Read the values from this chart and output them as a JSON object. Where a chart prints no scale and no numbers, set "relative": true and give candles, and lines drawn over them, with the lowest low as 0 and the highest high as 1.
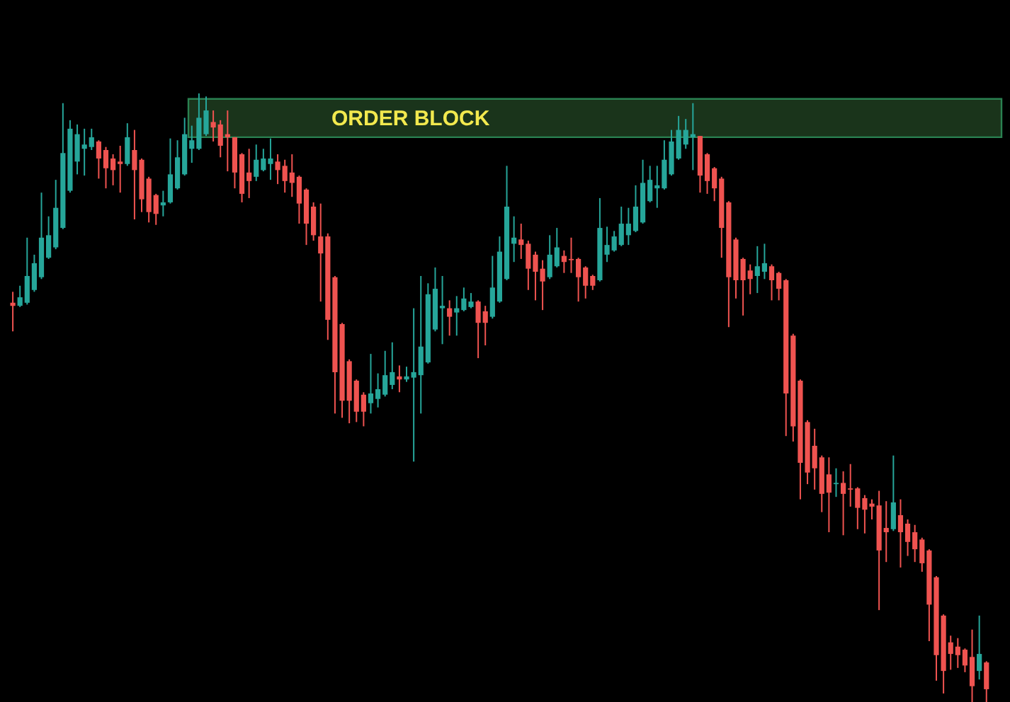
{
  "chart_data": {
    "type": "candlestick",
    "relative": true,
    "categories": [
      null,
      null,
      null,
      null,
      null,
      null,
      null,
      null,
      null,
      null,
      null,
      null,
      null,
      null,
      null,
      null,
      null,
      null,
      null,
      null,
      null,
      null,
      null,
      null,
      null,
      null,
      null,
      null,
      null,
      null,
      null,
      null,
      null,
      null,
      null,
      null,
      null,
      null,
      null,
      null,
      null,
      null,
      null,
      null,
      null,
      null,
      null,
      null,
      null,
      null,
      null,
      null,
      null,
      null,
      null,
      null,
      null,
      null,
      null,
      null,
      null,
      null,
      null,
      null,
      null,
      null,
      null,
      null,
      null,
      null,
      null,
      null,
      null,
      null,
      null,
      null,
      null,
      null,
      null,
      null,
      null,
      null,
      null,
      null,
      null,
      null,
      null,
      null,
      null,
      null,
      null,
      null,
      null,
      null,
      null,
      null,
      null,
      null,
      null,
      null,
      null,
      null,
      null,
      null,
      null,
      null,
      null,
      null,
      null,
      null,
      null,
      null,
      null,
      null,
      null,
      null,
      null,
      null,
      null,
      null,
      null,
      null,
      null,
      null,
      null,
      null,
      null,
      null,
      null,
      null,
      null,
      null,
      null,
      null,
      null,
      null,
      null
    ],
    "ohlc": [
      [
        0.656,
        0.674,
        0.609,
        0.651
      ],
      [
        0.651,
        0.684,
        0.649,
        0.665
      ],
      [
        0.656,
        0.763,
        0.653,
        0.7
      ],
      [
        0.677,
        0.735,
        0.674,
        0.721
      ],
      [
        0.698,
        0.837,
        0.695,
        0.763
      ],
      [
        0.73,
        0.798,
        0.728,
        0.767
      ],
      [
        0.747,
        0.858,
        0.744,
        0.812
      ],
      [
        0.779,
        0.984,
        0.777,
        0.902
      ],
      [
        0.84,
        0.956,
        0.837,
        0.942
      ],
      [
        0.888,
        0.949,
        0.867,
        0.933
      ],
      [
        0.909,
        0.942,
        0.865,
        0.916
      ],
      [
        0.912,
        0.942,
        0.907,
        0.928
      ],
      [
        0.921,
        0.923,
        0.86,
        0.893
      ],
      [
        0.907,
        0.912,
        0.844,
        0.877
      ],
      [
        0.893,
        0.9,
        0.849,
        0.874
      ],
      [
        0.888,
        0.914,
        0.837,
        0.884
      ],
      [
        0.884,
        0.951,
        0.881,
        0.928
      ],
      [
        0.907,
        0.94,
        0.793,
        0.874
      ],
      [
        0.891,
        0.893,
        0.805,
        0.826
      ],
      [
        0.86,
        0.863,
        0.788,
        0.805
      ],
      [
        0.833,
        0.835,
        0.784,
        0.802
      ],
      [
        0.816,
        0.84,
        0.798,
        0.821
      ],
      [
        0.821,
        0.926,
        0.819,
        0.867
      ],
      [
        0.844,
        0.923,
        0.842,
        0.895
      ],
      [
        0.867,
        0.96,
        0.865,
        0.933
      ],
      [
        0.909,
        0.947,
        0.886,
        0.923
      ],
      [
        0.909,
        1,
        0.907,
        0.96
      ],
      [
        0.933,
        0.995,
        0.93,
        0.972
      ],
      [
        0.953,
        0.972,
        0.921,
        0.944
      ],
      [
        0.949,
        0.956,
        0.895,
        0.914
      ],
      [
        0.933,
        0.972,
        0.872,
        0.928
      ],
      [
        0.928,
        0.928,
        0.844,
        0.87
      ],
      [
        0.9,
        0.902,
        0.821,
        0.835
      ],
      [
        0.87,
        0.909,
        0.828,
        0.856
      ],
      [
        0.863,
        0.916,
        0.856,
        0.891
      ],
      [
        0.874,
        0.909,
        0.872,
        0.893
      ],
      [
        0.884,
        0.926,
        0.858,
        0.893
      ],
      [
        0.888,
        0.9,
        0.851,
        0.874
      ],
      [
        0.881,
        0.891,
        0.837,
        0.856
      ],
      [
        0.87,
        0.9,
        0.83,
        0.853
      ],
      [
        0.863,
        0.865,
        0.786,
        0.819
      ],
      [
        0.842,
        0.844,
        0.751,
        0.786
      ],
      [
        0.814,
        0.821,
        0.758,
        0.767
      ],
      [
        0.765,
        0.819,
        0.658,
        0.737
      ],
      [
        0.765,
        0.77,
        0.595,
        0.628
      ],
      [
        0.698,
        0.7,
        0.474,
        0.542
      ],
      [
        0.621,
        0.623,
        0.467,
        0.495
      ],
      [
        0.56,
        0.563,
        0.458,
        0.495
      ],
      [
        0.528,
        0.53,
        0.46,
        0.477
      ],
      [
        0.505,
        0.509,
        0.453,
        0.477
      ],
      [
        0.491,
        0.572,
        0.474,
        0.507
      ],
      [
        0.498,
        0.54,
        0.484,
        0.514
      ],
      [
        0.505,
        0.577,
        0.502,
        0.537
      ],
      [
        0.521,
        0.591,
        0.514,
        0.542
      ],
      [
        0.535,
        0.553,
        0.509,
        0.53
      ],
      [
        0.53,
        0.551,
        0.526,
        0.535
      ],
      [
        0.533,
        0.647,
        0.395,
        0.542
      ],
      [
        0.537,
        0.7,
        0.474,
        0.584
      ],
      [
        0.558,
        0.688,
        0.556,
        0.67
      ],
      [
        0.612,
        0.714,
        0.609,
        0.679
      ],
      [
        0.647,
        0.7,
        0.588,
        0.651
      ],
      [
        0.647,
        0.66,
        0.602,
        0.633
      ],
      [
        0.64,
        0.667,
        0.602,
        0.647
      ],
      [
        0.644,
        0.681,
        0.642,
        0.663
      ],
      [
        0.649,
        0.672,
        0.647,
        0.658
      ],
      [
        0.658,
        0.66,
        0.565,
        0.623
      ],
      [
        0.642,
        0.651,
        0.586,
        0.623
      ],
      [
        0.633,
        0.733,
        0.63,
        0.681
      ],
      [
        0.658,
        0.765,
        0.656,
        0.74
      ],
      [
        0.695,
        0.881,
        0.693,
        0.814
      ],
      [
        0.753,
        0.798,
        0.723,
        0.763
      ],
      [
        0.76,
        0.786,
        0.728,
        0.751
      ],
      [
        0.753,
        0.758,
        0.677,
        0.712
      ],
      [
        0.735,
        0.74,
        0.66,
        0.707
      ],
      [
        0.712,
        0.726,
        0.644,
        0.691
      ],
      [
        0.698,
        0.767,
        0.695,
        0.735
      ],
      [
        0.716,
        0.779,
        0.714,
        0.747
      ],
      [
        0.733,
        0.742,
        0.705,
        0.723
      ],
      [
        0.728,
        0.763,
        0.705,
        0.726
      ],
      [
        0.728,
        0.73,
        0.658,
        0.698
      ],
      [
        0.714,
        0.716,
        0.663,
        0.684
      ],
      [
        0.7,
        0.702,
        0.677,
        0.684
      ],
      [
        0.693,
        0.828,
        0.691,
        0.779
      ],
      [
        0.735,
        0.781,
        0.723,
        0.751
      ],
      [
        0.742,
        0.774,
        0.74,
        0.765
      ],
      [
        0.751,
        0.814,
        0.749,
        0.786
      ],
      [
        0.767,
        0.812,
        0.751,
        0.786
      ],
      [
        0.774,
        0.849,
        0.772,
        0.814
      ],
      [
        0.788,
        0.891,
        0.786,
        0.853
      ],
      [
        0.823,
        0.881,
        0.821,
        0.858
      ],
      [
        0.844,
        0.881,
        0.812,
        0.849
      ],
      [
        0.844,
        0.923,
        0.842,
        0.891
      ],
      [
        0.867,
        0.94,
        0.865,
        0.921
      ],
      [
        0.893,
        0.963,
        0.891,
        0.94
      ],
      [
        0.916,
        0.958,
        0.909,
        0.94
      ],
      [
        0.928,
        0.984,
        0.874,
        0.933
      ],
      [
        0.93,
        0.93,
        0.837,
        0.865
      ],
      [
        0.9,
        0.902,
        0.835,
        0.856
      ],
      [
        0.877,
        0.879,
        0.823,
        0.844
      ],
      [
        0.86,
        0.863,
        0.73,
        0.779
      ],
      [
        0.821,
        0.823,
        0.616,
        0.698
      ],
      [
        0.76,
        0.763,
        0.663,
        0.693
      ],
      [
        0.728,
        0.73,
        0.635,
        0.693
      ],
      [
        0.709,
        0.719,
        0.67,
        0.695
      ],
      [
        0.7,
        0.749,
        0.672,
        0.716
      ],
      [
        0.707,
        0.753,
        0.695,
        0.721
      ],
      [
        0.716,
        0.719,
        0.66,
        0.693
      ],
      [
        0.705,
        0.707,
        0.66,
        0.679
      ],
      [
        0.693,
        0.695,
        0.437,
        0.507
      ],
      [
        0.602,
        0.605,
        0.428,
        0.453
      ],
      [
        0.528,
        0.53,
        0.333,
        0.393
      ],
      [
        0.46,
        0.463,
        0.358,
        0.377
      ],
      [
        0.421,
        0.449,
        0.349,
        0.384
      ],
      [
        0.402,
        0.405,
        0.312,
        0.342
      ],
      [
        0.374,
        0.402,
        0.279,
        0.344
      ],
      [
        0.358,
        0.384,
        0.337,
        0.36
      ],
      [
        0.36,
        0.379,
        0.274,
        0.342
      ],
      [
        0.351,
        0.391,
        0.321,
        0.349
      ],
      [
        0.351,
        0.353,
        0.284,
        0.319
      ],
      [
        0.335,
        0.34,
        0.277,
        0.316
      ],
      [
        0.326,
        0.333,
        0.3,
        0.321
      ],
      [
        0.323,
        0.347,
        0.151,
        0.249
      ],
      [
        0.286,
        0.33,
        0.23,
        0.279
      ],
      [
        0.284,
        0.405,
        0.281,
        0.328
      ],
      [
        0.307,
        0.333,
        0.221,
        0.279
      ],
      [
        0.293,
        0.3,
        0.24,
        0.263
      ],
      [
        0.279,
        0.291,
        0.23,
        0.251
      ],
      [
        0.267,
        0.27,
        0.214,
        0.228
      ],
      [
        0.249,
        0.251,
        0.1,
        0.16
      ],
      [
        0.205,
        0.207,
        0.035,
        0.077
      ],
      [
        0.142,
        0.144,
        0.014,
        0.051
      ],
      [
        0.098,
        0.109,
        0.053,
        0.079
      ],
      [
        0.091,
        0.105,
        0.056,
        0.077
      ],
      [
        0.086,
        0.088,
        0.049,
        0.06
      ],
      [
        0.074,
        0.119,
        0,
        0.026
      ],
      [
        0.051,
        0.142,
        0.037,
        0.079
      ],
      [
        0.065,
        0.067,
        0,
        0.021
      ]
    ],
    "colors": [
      "#ef5350",
      "#26a69a",
      "#26a69a",
      "#26a69a",
      "#26a69a",
      "#26a69a",
      "#26a69a",
      "#26a69a",
      "#26a69a",
      "#26a69a",
      "#26a69a",
      "#26a69a",
      "#ef5350",
      "#ef5350",
      "#ef5350",
      "#ef5350",
      "#26a69a",
      "#ef5350",
      "#ef5350",
      "#ef5350",
      "#ef5350",
      "#26a69a",
      "#26a69a",
      "#26a69a",
      "#26a69a",
      "#26a69a",
      "#26a69a",
      "#26a69a",
      "#ef5350",
      "#ef5350",
      "#ef5350",
      "#ef5350",
      "#ef5350",
      "#ef5350",
      "#26a69a",
      "#26a69a",
      "#26a69a",
      "#ef5350",
      "#ef5350",
      "#ef5350",
      "#ef5350",
      "#ef5350",
      "#ef5350",
      "#ef5350",
      "#ef5350",
      "#ef5350",
      "#ef5350",
      "#ef5350",
      "#ef5350",
      "#ef5350",
      "#26a69a",
      "#26a69a",
      "#26a69a",
      "#26a69a",
      "#ef5350",
      "#26a69a",
      "#26a69a",
      "#26a69a",
      "#26a69a",
      "#26a69a",
      "#26a69a",
      "#ef5350",
      "#26a69a",
      "#26a69a",
      "#26a69a",
      "#ef5350",
      "#ef5350",
      "#26a69a",
      "#26a69a",
      "#26a69a",
      "#26a69a",
      "#ef5350",
      "#ef5350",
      "#ef5350",
      "#ef5350",
      "#26a69a",
      "#26a69a",
      "#ef5350",
      "#ef5350",
      "#ef5350",
      "#ef5350",
      "#ef5350",
      "#26a69a",
      "#26a69a",
      "#26a69a",
      "#26a69a",
      "#26a69a",
      "#26a69a",
      "#26a69a",
      "#26a69a",
      "#26a69a",
      "#26a69a",
      "#26a69a",
      "#26a69a",
      "#26a69a",
      "#26a69a",
      "#ef5350",
      "#ef5350",
      "#ef5350",
      "#ef5350",
      "#ef5350",
      "#ef5350",
      "#ef5350",
      "#ef5350",
      "#26a69a",
      "#26a69a",
      "#ef5350",
      "#ef5350",
      "#ef5350",
      "#ef5350",
      "#ef5350",
      "#ef5350",
      "#ef5350",
      "#ef5350",
      "#ef5350",
      "#26a69a",
      "#ef5350",
      "#ef5350",
      "#ef5350",
      "#ef5350",
      "#ef5350",
      "#ef5350",
      "#ef5350",
      "#26a69a",
      "#ef5350",
      "#ef5350",
      "#ef5350",
      "#ef5350",
      "#ef5350",
      "#ef5350",
      "#ef5350",
      "#ef5350",
      "#ef5350",
      "#ef5350",
      "#ef5350",
      "#26a69a",
      "#ef5350"
    ],
    "bands": [
      {
        "axis": "y",
        "from": 0.928,
        "to": 0.991,
        "label": "ORDER BLOCK",
        "color": "#2f8f5a"
      }
    ]
  }
}
